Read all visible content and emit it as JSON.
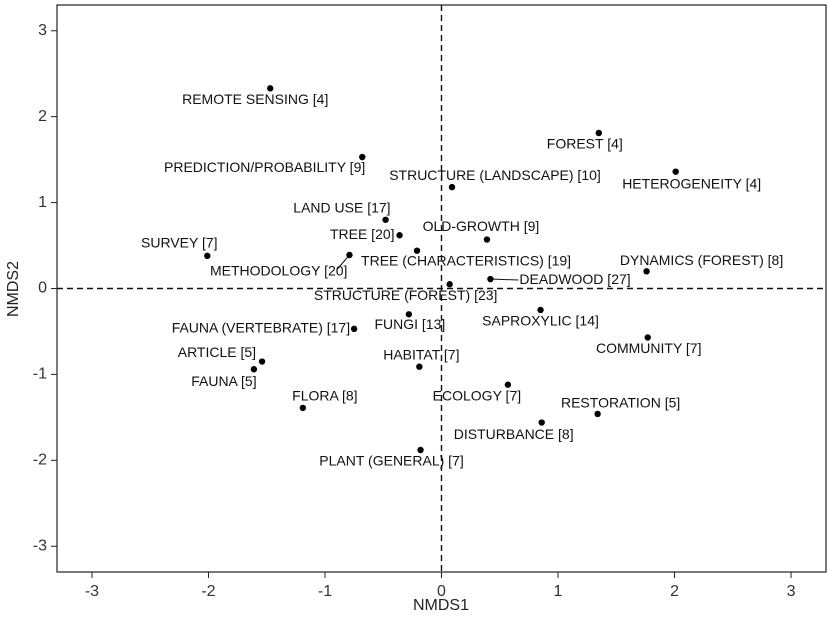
{
  "chart_data": {
    "type": "scatter",
    "xlabel": "NMDS1",
    "ylabel": "NMDS2",
    "labels": [
      "REMOTE SENSING [4]",
      "FOREST [4]",
      "PREDICTION/PROBABILITY [9]",
      "STRUCTURE (LANDSCAPE) [10]",
      "HETEROGENEITY [4]",
      "LAND USE [17]",
      "TREE [20]",
      "OLD-GROWTH [9]",
      "SURVEY [7]",
      "TREE (CHARACTERISTICS) [19]",
      "METHODOLOGY [20]",
      "DYNAMICS (FOREST) [8]",
      "DEADWOOD [27]",
      "STRUCTURE (FOREST) [23]",
      "SAPROXYLIC [14]",
      "FUNGI [13]",
      "FAUNA (VERTEBRATE) [17]",
      "COMMUNITY [7]",
      "ARTICLE [5]",
      "FAUNA [5]",
      "HABITAT [7]",
      "ECOLOGY [7]",
      "FLORA [8]",
      "RESTORATION [5]",
      "DISTURBANCE [8]",
      "PLANT (GENERAL) [7]"
    ],
    "x": [
      -1.47,
      1.35,
      -0.68,
      0.09,
      2.01,
      -0.48,
      -0.36,
      0.39,
      -2.01,
      -0.21,
      -0.79,
      1.76,
      0.42,
      0.07,
      0.85,
      -0.28,
      -0.75,
      1.77,
      -1.54,
      -1.61,
      -0.19,
      0.57,
      -1.19,
      1.34,
      0.86,
      -0.18
    ],
    "y": [
      2.33,
      1.81,
      1.53,
      1.18,
      1.36,
      0.8,
      0.62,
      0.57,
      0.38,
      0.44,
      0.39,
      0.2,
      0.11,
      0.05,
      -0.25,
      -0.3,
      -0.47,
      -0.57,
      -0.85,
      -0.94,
      -0.91,
      -1.12,
      -1.39,
      -1.46,
      -1.56,
      -1.88
    ],
    "color": "#000000",
    "xlim": [
      -3.3,
      3.3
    ],
    "ylim": [
      -3.3,
      3.3
    ],
    "xticks": [
      -3,
      -2,
      -1,
      0,
      1,
      2,
      3
    ],
    "yticks": [
      -3,
      -2,
      -1,
      0,
      1,
      2,
      3
    ]
  }
}
